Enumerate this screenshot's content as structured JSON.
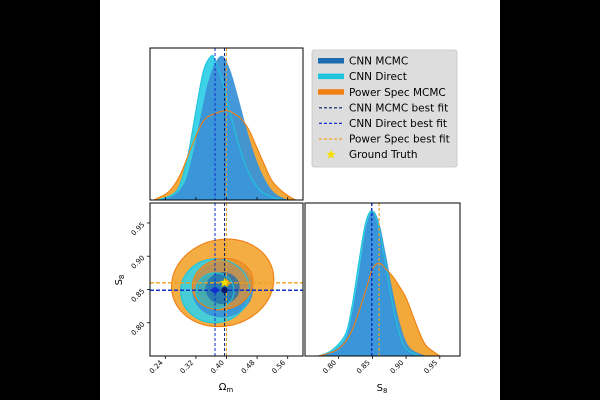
{
  "chart_data": {
    "type": "corner-plot",
    "parameters": [
      {
        "key": "omega_m",
        "label": "Ω",
        "label_sub": "m",
        "range": [
          0.2,
          0.6
        ],
        "ticks": [
          0.24,
          0.32,
          0.4,
          0.48,
          0.56
        ],
        "tick_labels": [
          "0.24",
          "0.32",
          "0.40",
          "0.48",
          "0.56"
        ]
      },
      {
        "key": "s8",
        "label": "S",
        "label_sub": "8",
        "range": [
          0.75,
          0.98
        ],
        "ticks": [
          0.8,
          0.85,
          0.9,
          0.95
        ],
        "tick_labels": [
          "0.80",
          "0.85",
          "0.90",
          "0.95"
        ]
      }
    ],
    "series": [
      {
        "name": "CNN MCMC",
        "color": "#1f6cb0",
        "fill": "#3a92d8",
        "best_fit": {
          "omega_m": 0.395,
          "s8": 0.849
        },
        "best_fit_color": "#0b1a66",
        "marginal_omega_m": {
          "x": [
            0.22,
            0.26,
            0.29,
            0.31,
            0.33,
            0.35,
            0.37,
            0.39,
            0.41,
            0.43,
            0.45,
            0.47,
            0.49,
            0.51,
            0.53,
            0.56
          ],
          "y": [
            0,
            0.03,
            0.12,
            0.3,
            0.55,
            0.8,
            0.95,
            1.0,
            0.9,
            0.72,
            0.52,
            0.34,
            0.2,
            0.1,
            0.04,
            0
          ]
        },
        "marginal_s8": {
          "x": [
            0.77,
            0.79,
            0.81,
            0.82,
            0.83,
            0.84,
            0.85,
            0.86,
            0.87,
            0.88,
            0.89,
            0.9,
            0.91,
            0.93
          ],
          "y": [
            0,
            0.03,
            0.12,
            0.3,
            0.58,
            0.88,
            1.0,
            0.92,
            0.7,
            0.45,
            0.24,
            0.1,
            0.04,
            0
          ]
        },
        "contours": [
          {
            "level": "95%",
            "cx": 0.39,
            "cy": 0.85,
            "rx": 0.08,
            "ry": 0.042,
            "angle": -8
          },
          {
            "level": "68%",
            "cx": 0.39,
            "cy": 0.852,
            "rx": 0.045,
            "ry": 0.024,
            "angle": -8
          }
        ]
      },
      {
        "name": "CNN Direct",
        "color": "#1fc5dd",
        "fill": "#33d0e6",
        "best_fit": {
          "omega_m": 0.37,
          "s8": 0.849
        },
        "best_fit_color": "#1030d0",
        "marginal_omega_m": {
          "x": [
            0.22,
            0.26,
            0.28,
            0.3,
            0.32,
            0.34,
            0.36,
            0.37,
            0.39,
            0.41,
            0.43,
            0.45,
            0.47,
            0.49,
            0.52,
            0.55
          ],
          "y": [
            0,
            0.04,
            0.12,
            0.32,
            0.62,
            0.9,
            1.0,
            0.97,
            0.82,
            0.6,
            0.4,
            0.24,
            0.13,
            0.06,
            0.02,
            0
          ]
        },
        "marginal_s8": {
          "x": [
            0.77,
            0.79,
            0.81,
            0.82,
            0.83,
            0.84,
            0.85,
            0.86,
            0.87,
            0.88,
            0.89,
            0.9,
            0.92
          ],
          "y": [
            0,
            0.04,
            0.15,
            0.35,
            0.65,
            0.92,
            1.0,
            0.88,
            0.62,
            0.36,
            0.16,
            0.05,
            0
          ]
        },
        "contours": [
          {
            "level": "95%",
            "cx": 0.37,
            "cy": 0.848,
            "rx": 0.09,
            "ry": 0.048,
            "angle": -6
          },
          {
            "level": "68%",
            "cx": 0.37,
            "cy": 0.848,
            "rx": 0.05,
            "ry": 0.027,
            "angle": -6
          }
        ]
      },
      {
        "name": "Power Spec MCMC",
        "color": "#f07f12",
        "fill": "#f2a42e",
        "best_fit": {
          "omega_m": 0.4,
          "s8": 0.86
        },
        "best_fit_color": "#f0a020",
        "marginal_omega_m": {
          "x": [
            0.21,
            0.25,
            0.28,
            0.31,
            0.34,
            0.37,
            0.4,
            0.42,
            0.44,
            0.46,
            0.48,
            0.5,
            0.52,
            0.55,
            0.58
          ],
          "y": [
            0,
            0.06,
            0.18,
            0.38,
            0.55,
            0.6,
            0.62,
            0.6,
            0.56,
            0.48,
            0.36,
            0.24,
            0.13,
            0.05,
            0
          ]
        },
        "marginal_s8": {
          "x": [
            0.77,
            0.8,
            0.82,
            0.84,
            0.85,
            0.86,
            0.87,
            0.88,
            0.89,
            0.9,
            0.91,
            0.92,
            0.93,
            0.95
          ],
          "y": [
            0,
            0.05,
            0.18,
            0.45,
            0.6,
            0.64,
            0.6,
            0.55,
            0.48,
            0.4,
            0.28,
            0.16,
            0.07,
            0
          ]
        },
        "contours": [
          {
            "level": "95%",
            "cx": 0.39,
            "cy": 0.86,
            "rx": 0.135,
            "ry": 0.065,
            "angle": -14
          },
          {
            "level": "68%",
            "cx": 0.39,
            "cy": 0.858,
            "rx": 0.08,
            "ry": 0.038,
            "angle": -14
          }
        ]
      }
    ],
    "ground_truth": {
      "name": "Ground Truth",
      "omega_m": 0.395,
      "s8": 0.86,
      "color": "#f5e000"
    },
    "legend": {
      "position": "top-right",
      "entries": [
        {
          "label": "CNN MCMC",
          "kind": "patch",
          "color": "#1f6cb0"
        },
        {
          "label": "CNN Direct",
          "kind": "patch",
          "color": "#1fc5dd"
        },
        {
          "label": "Power Spec MCMC",
          "kind": "patch",
          "color": "#f07f12"
        },
        {
          "label": "CNN MCMC best fit",
          "kind": "dashed",
          "color": "#0b1a66"
        },
        {
          "label": "CNN Direct best fit",
          "kind": "dashed",
          "color": "#1030d0"
        },
        {
          "label": "Power Spec best fit",
          "kind": "dashed",
          "color": "#f0a020"
        },
        {
          "label": "Ground Truth",
          "kind": "star",
          "color": "#f5e000"
        }
      ]
    }
  }
}
